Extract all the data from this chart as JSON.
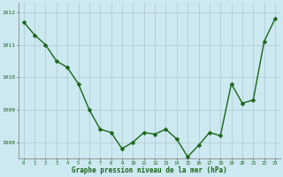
{
  "x": [
    0,
    1,
    2,
    3,
    4,
    5,
    6,
    7,
    8,
    9,
    10,
    11,
    12,
    13,
    14,
    15,
    16,
    17,
    18,
    19,
    20,
    21,
    22,
    23
  ],
  "y": [
    1011.7,
    1011.3,
    1011.0,
    1010.5,
    1010.3,
    1009.8,
    1009.0,
    1008.4,
    1008.3,
    1007.8,
    1008.0,
    1008.3,
    1008.25,
    1008.4,
    1008.1,
    1007.55,
    1007.9,
    1008.3,
    1008.2,
    1009.8,
    1009.2,
    1009.3,
    1011.1,
    1011.8
  ],
  "line_color": "#1a6618",
  "marker_color": "#1a6618",
  "bg_color": "#cce8f0",
  "grid_color": "#b0c8d0",
  "xlabel": "Graphe pression niveau de la mer (hPa)",
  "xlabel_color": "#1a6618",
  "tick_label_color": "#1a6618",
  "ylim": [
    1007.5,
    1012.3
  ],
  "yticks": [
    1008,
    1009,
    1010,
    1011,
    1012
  ],
  "xticks": [
    0,
    1,
    2,
    3,
    4,
    5,
    6,
    7,
    8,
    9,
    10,
    11,
    12,
    13,
    14,
    15,
    16,
    17,
    18,
    19,
    20,
    21,
    22,
    23
  ],
  "line_width": 1.0,
  "marker_size": 2.5,
  "border_color": "#888888"
}
